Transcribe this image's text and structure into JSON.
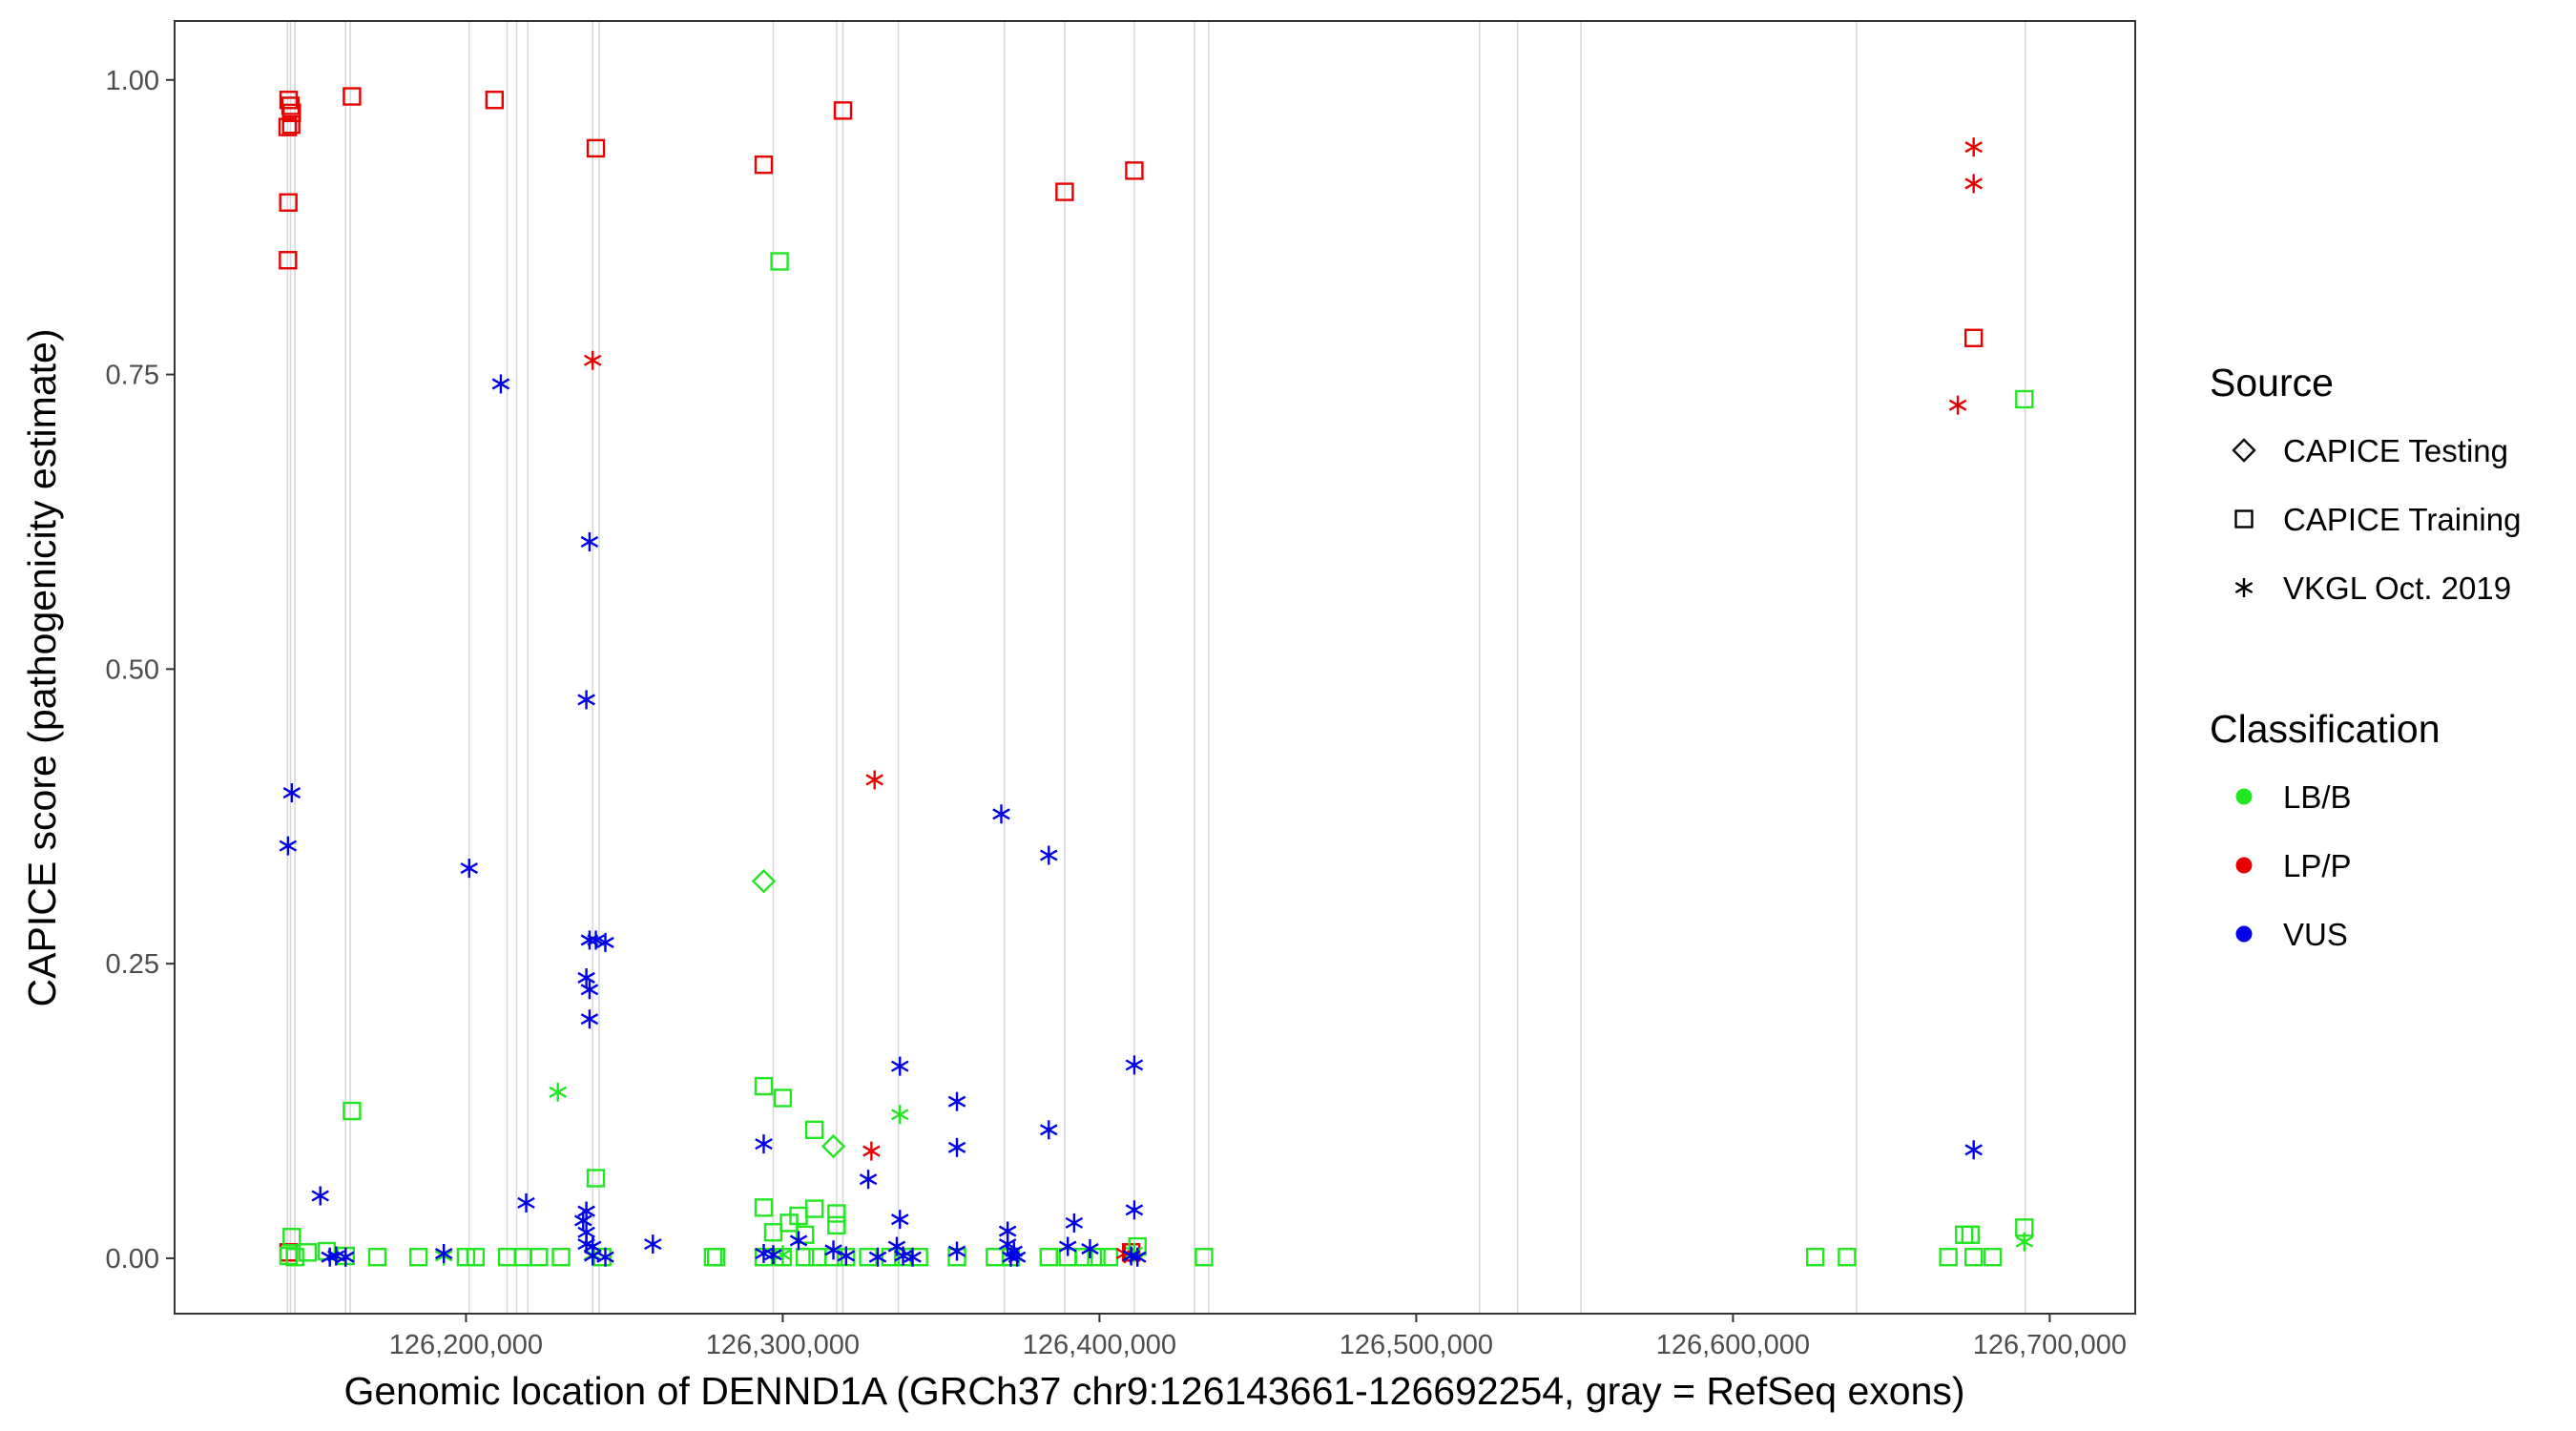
{
  "chart_data": {
    "type": "scatter",
    "title": "",
    "xlabel": "Genomic location of DENND1A (GRCh37 chr9:126143661-126692254, gray = RefSeq exons)",
    "ylabel": "CAPICE score (pathogenicity estimate)",
    "xlim": [
      126108000,
      126727000
    ],
    "ylim": [
      -0.047,
      1.05
    ],
    "x_ticks": [
      126200000,
      126300000,
      126400000,
      126500000,
      126600000,
      126700000
    ],
    "x_tick_labels": [
      "126,200,000",
      "126,300,000",
      "126,400,000",
      "126,500,000",
      "126,600,000",
      "126,700,000"
    ],
    "y_ticks": [
      0,
      0.25,
      0.5,
      0.75,
      1.0
    ],
    "y_tick_labels": [
      "0.00",
      "0.25",
      "0.50",
      "0.75",
      "1.00"
    ],
    "grid": false,
    "exon_lines": [
      126143661,
      126144600,
      126146000,
      126162000,
      126163500,
      126201000,
      126213000,
      126216000,
      126219500,
      126240000,
      126242000,
      126297000,
      126317000,
      126319000,
      126336500,
      126370000,
      126389000,
      126411000,
      126430000,
      126434500,
      126520000,
      126532000,
      126552000,
      126639000,
      126692254
    ],
    "legend_source_title": "Source",
    "legend_source": [
      {
        "label": "CAPICE Testing",
        "shape": "diamond"
      },
      {
        "label": "CAPICE Training",
        "shape": "square"
      },
      {
        "label": "VKGL Oct. 2019",
        "shape": "asterisk"
      }
    ],
    "legend_class_title": "Classification",
    "legend_class": [
      {
        "label": "LB/B",
        "color": "#22e622"
      },
      {
        "label": "LP/P",
        "color": "#e60000"
      },
      {
        "label": "VUS",
        "color": "#0000e6"
      }
    ],
    "legend_placement": "right",
    "series": [
      {
        "source": "CAPICE Training",
        "classification": "LP/P",
        "points": [
          [
            126144000,
            0.983
          ],
          [
            126144600,
            0.978
          ],
          [
            126145000,
            0.972
          ],
          [
            126143700,
            0.96
          ],
          [
            126144800,
            0.962
          ],
          [
            126143900,
            0.896
          ],
          [
            126143800,
            0.847
          ],
          [
            126164000,
            0.986
          ],
          [
            126209000,
            0.983
          ],
          [
            126241000,
            0.942
          ],
          [
            126294000,
            0.928
          ],
          [
            126319000,
            0.974
          ],
          [
            126389000,
            0.905
          ],
          [
            126411000,
            0.923
          ],
          [
            126676000,
            0.781
          ],
          [
            126144000,
            0.005
          ],
          [
            126410000,
            0.005
          ]
        ]
      },
      {
        "source": "CAPICE Training",
        "classification": "LB/B",
        "points": [
          [
            126299000,
            0.846
          ],
          [
            126692000,
            0.729
          ],
          [
            126164000,
            0.125
          ],
          [
            126294000,
            0.146
          ],
          [
            126300000,
            0.136
          ],
          [
            126310000,
            0.109
          ],
          [
            126241000,
            0.068
          ],
          [
            126294000,
            0.043
          ],
          [
            126302000,
            0.03
          ],
          [
            126305000,
            0.036
          ],
          [
            126310000,
            0.042
          ],
          [
            126317000,
            0.038
          ],
          [
            126317000,
            0.028
          ],
          [
            126307000,
            0.02
          ],
          [
            126297000,
            0.022
          ],
          [
            126145000,
            0.018
          ],
          [
            126675000,
            0.02
          ],
          [
            126673000,
            0.02
          ],
          [
            126692000,
            0.026
          ],
          [
            126144000,
            0.002
          ],
          [
            126146000,
            0.001
          ],
          [
            126150000,
            0.005
          ],
          [
            126156000,
            0.006
          ],
          [
            126162000,
            0.002
          ],
          [
            126172000,
            0.001
          ],
          [
            126185000,
            0.001
          ],
          [
            126200000,
            0.001
          ],
          [
            126203000,
            0.001
          ],
          [
            126213000,
            0.001
          ],
          [
            126218000,
            0.001
          ],
          [
            126223000,
            0.001
          ],
          [
            126230000,
            0.001
          ],
          [
            126243000,
            0.001
          ],
          [
            126278000,
            0.001
          ],
          [
            126279000,
            0.001
          ],
          [
            126294000,
            0.001
          ],
          [
            126300000,
            0.001
          ],
          [
            126307000,
            0.001
          ],
          [
            126311000,
            0.001
          ],
          [
            126316000,
            0.001
          ],
          [
            126320000,
            0.001
          ],
          [
            126327000,
            0.001
          ],
          [
            126334000,
            0.001
          ],
          [
            126338000,
            0.001
          ],
          [
            126343000,
            0.001
          ],
          [
            126355000,
            0.001
          ],
          [
            126367000,
            0.001
          ],
          [
            126372000,
            0.001
          ],
          [
            126384000,
            0.001
          ],
          [
            126390000,
            0.001
          ],
          [
            126395000,
            0.001
          ],
          [
            126399000,
            0.001
          ],
          [
            126403000,
            0.001
          ],
          [
            126412000,
            0.01
          ],
          [
            126433000,
            0.001
          ],
          [
            126626000,
            0.001
          ],
          [
            126636000,
            0.001
          ],
          [
            126668000,
            0.001
          ],
          [
            126676000,
            0.001
          ],
          [
            126682000,
            0.001
          ]
        ]
      },
      {
        "source": "CAPICE Testing",
        "classification": "LB/B",
        "points": [
          [
            126294000,
            0.32
          ],
          [
            126316000,
            0.095
          ]
        ]
      },
      {
        "source": "VKGL Oct. 2019",
        "classification": "LP/P",
        "points": [
          [
            126240000,
            0.762
          ],
          [
            126329000,
            0.406
          ],
          [
            126328000,
            0.091
          ],
          [
            126676000,
            0.943
          ],
          [
            126676000,
            0.912
          ],
          [
            126671000,
            0.724
          ],
          [
            126408000,
            0.004
          ]
        ]
      },
      {
        "source": "VKGL Oct. 2019",
        "classification": "LB/B",
        "points": [
          [
            126229000,
            0.141
          ],
          [
            126337000,
            0.122
          ],
          [
            126692000,
            0.014
          ],
          [
            126240000,
            0.003
          ],
          [
            126300000,
            0.003
          ],
          [
            126411000,
            0.005
          ],
          [
            126193000,
            0.002
          ],
          [
            126162000,
            0.001
          ]
        ]
      },
      {
        "source": "VKGL Oct. 2019",
        "classification": "VUS",
        "points": [
          [
            126211000,
            0.742
          ],
          [
            126239000,
            0.608
          ],
          [
            126238000,
            0.474
          ],
          [
            126145000,
            0.395
          ],
          [
            126143800,
            0.35
          ],
          [
            126201000,
            0.331
          ],
          [
            126369000,
            0.377
          ],
          [
            126384000,
            0.342
          ],
          [
            126239000,
            0.27
          ],
          [
            126241000,
            0.27
          ],
          [
            126244000,
            0.268
          ],
          [
            126238000,
            0.238
          ],
          [
            126239000,
            0.228
          ],
          [
            126239000,
            0.203
          ],
          [
            126337000,
            0.163
          ],
          [
            126411000,
            0.164
          ],
          [
            126355000,
            0.133
          ],
          [
            126384000,
            0.109
          ],
          [
            126294000,
            0.097
          ],
          [
            126355000,
            0.094
          ],
          [
            126676000,
            0.092
          ],
          [
            126327000,
            0.067
          ],
          [
            126154000,
            0.053
          ],
          [
            126219000,
            0.047
          ],
          [
            126411000,
            0.041
          ],
          [
            126238000,
            0.04
          ],
          [
            126237000,
            0.032
          ],
          [
            126337000,
            0.033
          ],
          [
            126392000,
            0.03
          ],
          [
            126238000,
            0.022
          ],
          [
            126371000,
            0.023
          ],
          [
            126305000,
            0.015
          ],
          [
            126259000,
            0.012
          ],
          [
            126238000,
            0.012
          ],
          [
            126240000,
            0.01
          ],
          [
            126336000,
            0.01
          ],
          [
            126390000,
            0.01
          ],
          [
            126371000,
            0.012
          ],
          [
            126373000,
            0.006
          ],
          [
            126316000,
            0.007
          ],
          [
            126297000,
            0.003
          ],
          [
            126355000,
            0.006
          ],
          [
            126397000,
            0.008
          ],
          [
            126294000,
            0.004
          ],
          [
            126410000,
            0.002
          ],
          [
            126193000,
            0.004
          ],
          [
            126159000,
            0.002
          ],
          [
            126157000,
            0.001
          ],
          [
            126162000,
            0.001
          ],
          [
            126240000,
            0.002
          ],
          [
            126244000,
            0.001
          ],
          [
            126320000,
            0.002
          ],
          [
            126330000,
            0.001
          ],
          [
            126338000,
            0.002
          ],
          [
            126341000,
            0.001
          ],
          [
            126372000,
            0.001
          ],
          [
            126374000,
            0.001
          ],
          [
            126412000,
            0.001
          ]
        ]
      }
    ]
  }
}
